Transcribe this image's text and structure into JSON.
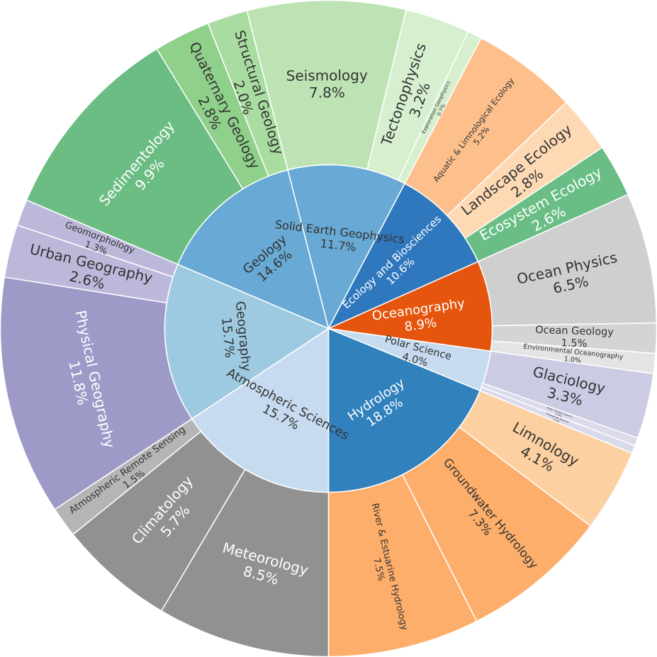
{
  "chart_data": {
    "type": "sunburst",
    "inner": [
      {
        "name": "Hydrology",
        "value": 18.8,
        "color": "#3181bd",
        "text_color": "#ffffff"
      },
      {
        "name": "Polar Science",
        "value": 4.0,
        "color": "#c6dbef",
        "text_color": "#333333"
      },
      {
        "name": "Oceanography",
        "value": 8.9,
        "color": "#e6550d",
        "text_color": "#ffffff"
      },
      {
        "name": "Ecology and Biosciences",
        "value": 10.6,
        "color": "#2f78bd",
        "text_color": "#ffffff"
      },
      {
        "name": "Solid Earth Geophysics",
        "value": 11.7,
        "color": "#68aad5",
        "text_color": "#333333"
      },
      {
        "name": "Geology",
        "value": 14.6,
        "color": "#68aad5",
        "text_color": "#333333"
      },
      {
        "name": "Geography",
        "value": 15.7,
        "color": "#9ecae1",
        "text_color": "#333333"
      },
      {
        "name": "Atmospheric Sciences",
        "value": 15.7,
        "color": "#c6dbef",
        "text_color": "#333333"
      }
    ],
    "outer": [
      {
        "name": "River & Estuarine Hydrology",
        "value": 7.5,
        "parent": "Hydrology",
        "color": "#fdae6b",
        "text_color": "#333333"
      },
      {
        "name": "Groundwater Hydrology",
        "value": 7.3,
        "parent": "Hydrology",
        "color": "#fdae6b",
        "text_color": "#333333"
      },
      {
        "name": "Limnology",
        "value": 4.1,
        "parent": "Hydrology",
        "color": "#fdd0a2",
        "text_color": "#333333"
      },
      {
        "name": "Permafrost Science",
        "value": 0.4,
        "parent": "Polar Science",
        "color": "#dadaeb",
        "text_color": "#333333"
      },
      {
        "name": "Polar Climate Science",
        "value": 0.4,
        "parent": "Polar Science",
        "color": "#dadaeb",
        "text_color": "#333333"
      },
      {
        "name": "Glaciology",
        "value": 3.3,
        "parent": "Polar Science",
        "color": "#cbcbe3",
        "text_color": "#333333"
      },
      {
        "name": "Environmental Oceanography",
        "value": 1.0,
        "parent": "Oceanography",
        "color": "#e4e4e4",
        "text_color": "#333333"
      },
      {
        "name": "Ocean Geology",
        "value": 1.5,
        "parent": "Oceanography",
        "color": "#d4d4d4",
        "text_color": "#333333"
      },
      {
        "name": "Ocean Physics",
        "value": 6.5,
        "parent": "Oceanography",
        "color": "#cfcfcf",
        "text_color": "#333333"
      },
      {
        "name": "Ecosystem Ecology",
        "value": 2.6,
        "parent": "Ecology and Biosciences",
        "color": "#6abe85",
        "text_color": "#ffffff"
      },
      {
        "name": "Landscape Ecology",
        "value": 2.8,
        "parent": "Ecology and Biosciences",
        "color": "#fdd9b4",
        "text_color": "#333333"
      },
      {
        "name": "Aquatic & Limnological Ecology",
        "value": 5.2,
        "parent": "Ecology and Biosciences",
        "color": "#fdc08c",
        "text_color": "#333333"
      },
      {
        "name": "Exploration Geophysics",
        "value": 0.7,
        "parent": "Solid Earth Geophysics",
        "color": "#d5efcf",
        "text_color": "#333333"
      },
      {
        "name": "Tectonophysics",
        "value": 3.2,
        "parent": "Solid Earth Geophysics",
        "color": "#d5efcf",
        "text_color": "#333333"
      },
      {
        "name": "Seismology",
        "value": 7.8,
        "parent": "Solid Earth Geophysics",
        "color": "#bde3b5",
        "text_color": "#333333"
      },
      {
        "name": "Structural Geology",
        "value": 2.0,
        "parent": "Geology",
        "color": "#a9dca0",
        "text_color": "#333333"
      },
      {
        "name": "Quaternary Geology",
        "value": 2.8,
        "parent": "Geology",
        "color": "#8fd08a",
        "text_color": "#333333"
      },
      {
        "name": "Sedimentology",
        "value": 9.9,
        "parent": "Geology",
        "color": "#6cbd84",
        "text_color": "#ffffff"
      },
      {
        "name": "Geomorphology",
        "value": 1.3,
        "parent": "Geography",
        "color": "#bcb8da",
        "text_color": "#333333"
      },
      {
        "name": "Urban Geography",
        "value": 2.6,
        "parent": "Geography",
        "color": "#bcb8da",
        "text_color": "#333333"
      },
      {
        "name": "Physical Geography",
        "value": 11.8,
        "parent": "Geography",
        "color": "#9e9ac8",
        "text_color": "#ffffff"
      },
      {
        "name": "Atmospheric Remote Sensing",
        "value": 1.5,
        "parent": "Atmospheric Sciences",
        "color": "#b5b5b5",
        "text_color": "#333333"
      },
      {
        "name": "Climatology",
        "value": 5.7,
        "parent": "Atmospheric Sciences",
        "color": "#919191",
        "text_color": "#ffffff"
      },
      {
        "name": "Meteorology",
        "value": 8.5,
        "parent": "Atmospheric Sciences",
        "color": "#919191",
        "text_color": "#ffffff"
      }
    ]
  }
}
